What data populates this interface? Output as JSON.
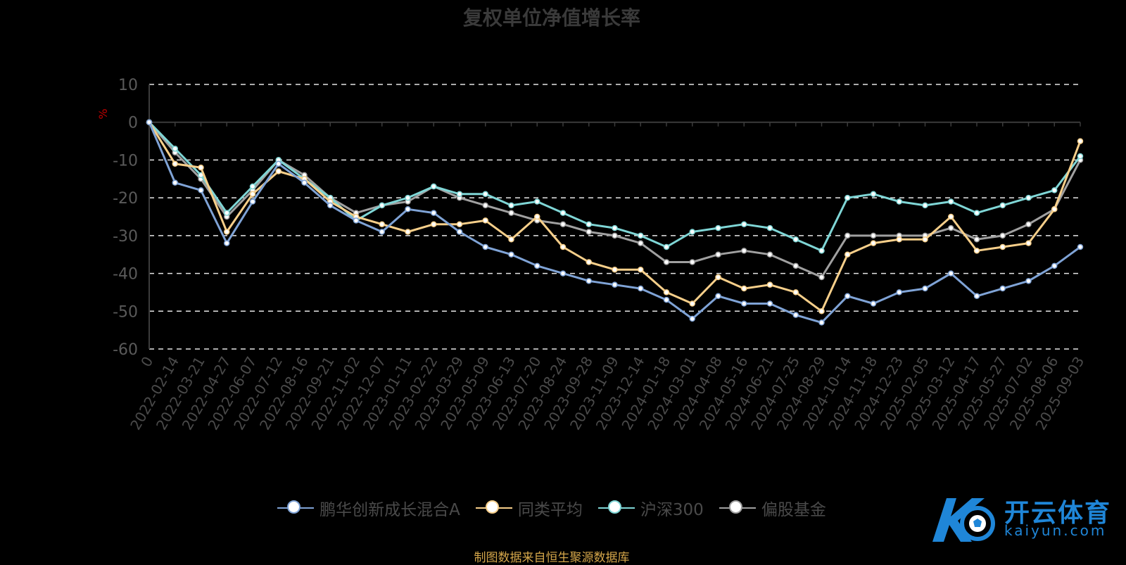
{
  "chart_data": {
    "type": "line",
    "title": "复权单位净值增长率",
    "ylabel": "%",
    "ylim": [
      -60,
      10
    ],
    "yticks": [
      10,
      0,
      -10,
      -20,
      -30,
      -40,
      -50,
      -60
    ],
    "grid": true,
    "legend_position": "bottom",
    "categories": [
      "0",
      "2022-02-14",
      "2022-03-21",
      "2022-04-27",
      "2022-06-07",
      "2022-07-12",
      "2022-08-16",
      "2022-09-21",
      "2022-11-02",
      "2022-12-07",
      "2023-01-11",
      "2023-02-22",
      "2023-03-29",
      "2023-05-09",
      "2023-06-13",
      "2023-07-20",
      "2023-08-24",
      "2023-09-28",
      "2023-11-09",
      "2023-12-14",
      "2024-01-18",
      "2024-03-01",
      "2024-04-08",
      "2024-05-16",
      "2024-06-21",
      "2024-07-25",
      "2024-08-29",
      "2024-10-14",
      "2024-11-18",
      "2024-12-23",
      "2025-02-05",
      "2025-03-12",
      "2025-04-17",
      "2025-05-27",
      "2025-07-02",
      "2025-08-06",
      "2025-09-03"
    ],
    "series": [
      {
        "name": "鹏华创新成长混合A",
        "color": "#7fa3d6",
        "values": [
          0,
          -16,
          -18,
          -32,
          -21,
          -11,
          -16,
          -22,
          -26,
          -29,
          -23,
          -24,
          -29,
          -33,
          -35,
          -38,
          -40,
          -42,
          -43,
          -44,
          -47,
          -52,
          -46,
          -48,
          -48,
          -51,
          -53,
          -46,
          -48,
          -45,
          -44,
          -40,
          -46,
          -44,
          -42,
          -38,
          -33
        ]
      },
      {
        "name": "同类平均",
        "color": "#f7cf8a",
        "values": [
          0,
          -11,
          -12,
          -29,
          -19,
          -13,
          -15,
          -21,
          -25,
          -27,
          -29,
          -27,
          -27,
          -26,
          -31,
          -25,
          -33,
          -37,
          -39,
          -39,
          -45,
          -48,
          -41,
          -44,
          -43,
          -45,
          -50,
          -35,
          -32,
          -31,
          -31,
          -25,
          -34,
          -33,
          -32,
          -23,
          -5
        ]
      },
      {
        "name": "沪深300",
        "color": "#7fd6d6",
        "values": [
          0,
          -7,
          -14,
          -24,
          -17,
          -10,
          -15,
          -20,
          -26,
          -22,
          -20,
          -17,
          -19,
          -19,
          -22,
          -21,
          -24,
          -27,
          -28,
          -30,
          -33,
          -29,
          -28,
          -27,
          -28,
          -31,
          -34,
          -20,
          -19,
          -21,
          -22,
          -21,
          -24,
          -22,
          -20,
          -18,
          -9
        ]
      },
      {
        "name": "偏股基金",
        "color": "#a0a0a0",
        "values": [
          0,
          -8,
          -15,
          -25,
          -18,
          -10,
          -14,
          -20,
          -24,
          -22,
          -21,
          -17,
          -20,
          -22,
          -24,
          -26,
          -27,
          -29,
          -30,
          -32,
          -37,
          -37,
          -35,
          -34,
          -35,
          -38,
          -41,
          -30,
          -30,
          -30,
          -30,
          -28,
          -31,
          -30,
          -27,
          -23,
          -10
        ]
      }
    ]
  },
  "legend": {
    "items": [
      {
        "label": "鹏华创新成长混合A",
        "color": "#7fa3d6"
      },
      {
        "label": "同类平均",
        "color": "#f7cf8a"
      },
      {
        "label": "沪深300",
        "color": "#7fd6d6"
      },
      {
        "label": "偏股基金",
        "color": "#a0a0a0"
      }
    ]
  },
  "footnote": "制图数据来自恒生聚源数据库",
  "watermark": {
    "name": "开云体育",
    "sub": "kaiyun.com"
  }
}
